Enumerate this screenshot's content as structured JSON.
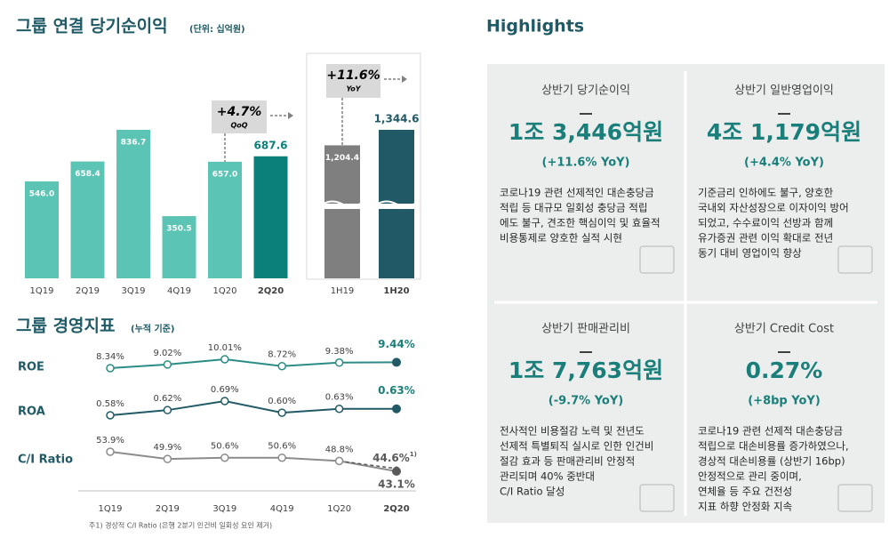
{
  "chart_data": [
    {
      "type": "bar",
      "title": "그룹 연결 당기순이익",
      "subtitle": "(단위: 십억원)",
      "categories": [
        "1Q19",
        "2Q19",
        "3Q19",
        "4Q19",
        "1Q20",
        "2Q20"
      ],
      "values": [
        546.0,
        658.4,
        836.7,
        350.5,
        657.0,
        687.6
      ],
      "value_labels": [
        "546.0",
        "658.4",
        "836.7",
        "350.5",
        "657.0",
        "687.6"
      ],
      "colors": [
        "#5cc4b5",
        "#5cc4b5",
        "#5cc4b5",
        "#5cc4b5",
        "#5cc4b5",
        "#0b7f79"
      ],
      "annotation": {
        "text": "+4.7%",
        "subtext": "QoQ"
      }
    },
    {
      "type": "bar",
      "categories": [
        "1H19",
        "1H20"
      ],
      "values": [
        1204.4,
        1344.6
      ],
      "value_labels": [
        "1,204.4",
        "1,344.6"
      ],
      "colors": [
        "#7f7f7f",
        "#215a66"
      ],
      "annotation": {
        "text": "+11.6%",
        "subtext": "YoY"
      }
    },
    {
      "type": "line",
      "title": "그룹 경영지표",
      "subtitle": "(누적 기준)",
      "categories": [
        "1Q19",
        "2Q19",
        "3Q19",
        "4Q19",
        "1Q20",
        "2Q20"
      ],
      "series": [
        {
          "name": "ROE",
          "color": "#2b8c86",
          "values": [
            8.34,
            9.02,
            10.01,
            8.72,
            9.38,
            9.44
          ],
          "value_labels": [
            "8.34%",
            "9.02%",
            "10.01%",
            "8.72%",
            "9.38%",
            "9.44%"
          ]
        },
        {
          "name": "ROA",
          "color": "#215a66",
          "values": [
            0.58,
            0.62,
            0.69,
            0.6,
            0.63,
            0.63
          ],
          "value_labels": [
            "0.58%",
            "0.62%",
            "0.69%",
            "0.60%",
            "0.63%",
            "0.63%"
          ]
        },
        {
          "name": "C/I Ratio",
          "color": "#8c8c8c",
          "values": [
            53.9,
            49.9,
            50.6,
            50.6,
            48.8,
            43.1
          ],
          "value_labels": [
            "53.9%",
            "49.9%",
            "50.6%",
            "50.6%",
            "48.8%",
            "43.1%"
          ],
          "adjusted": {
            "value": 44.6,
            "label": "44.6%",
            "note": "1)"
          }
        }
      ],
      "footnote": "주1) 경상적 C/I Ratio (은행 2분기 인건비 일회성 요인 제거)"
    }
  ],
  "highlights": {
    "title": "Highlights",
    "cards": [
      {
        "title": "상반기 당기순이익",
        "value": "1조 3,446억원",
        "change": "(+11.6% YoY)",
        "lines": [
          "코로나19 관련 선제적인 대손충당금",
          "적립 등 대규모 일회성 충당금 적립",
          "에도 불구, 견조한 핵심이익 및 효율적",
          "비용통제로 양호한 실적 시현"
        ]
      },
      {
        "title": "상반기 일반영업이익",
        "value": "4조 1,179억원",
        "change": "(+4.4% YoY)",
        "lines": [
          "기준금리 인하에도 불구, 양호한",
          "국내외 자산성장으로 이자이익 방어",
          "되었고, 수수료이익 선방과 함께",
          "유가증권 관련 이익 확대로 전년",
          "동기 대비 영업이익 향상"
        ]
      },
      {
        "title": "상반기 판매관리비",
        "value": "1조 7,763억원",
        "change": "(-9.7% YoY)",
        "lines": [
          "전사적인 비용절감 노력 및 전년도",
          "선제적 특별퇴직 실시로 인한 인건비",
          "절감 효과 등 판매관리비 안정적",
          "관리되며 40% 중반대",
          "C/I Ratio 달성"
        ]
      },
      {
        "title": "상반기 Credit Cost",
        "value": "0.27%",
        "change": "(+8bp YoY)",
        "lines": [
          "코로나19 관련 선제적 대손충당금",
          "적립으로 대손비용률 증가하였으나,",
          "경상적 대손비용률 (상반기 16bp)",
          "안정적으로 관리 중이며,",
          "연체율 등 주요 건전성",
          "지표 하향 안정화 지속"
        ]
      }
    ]
  }
}
